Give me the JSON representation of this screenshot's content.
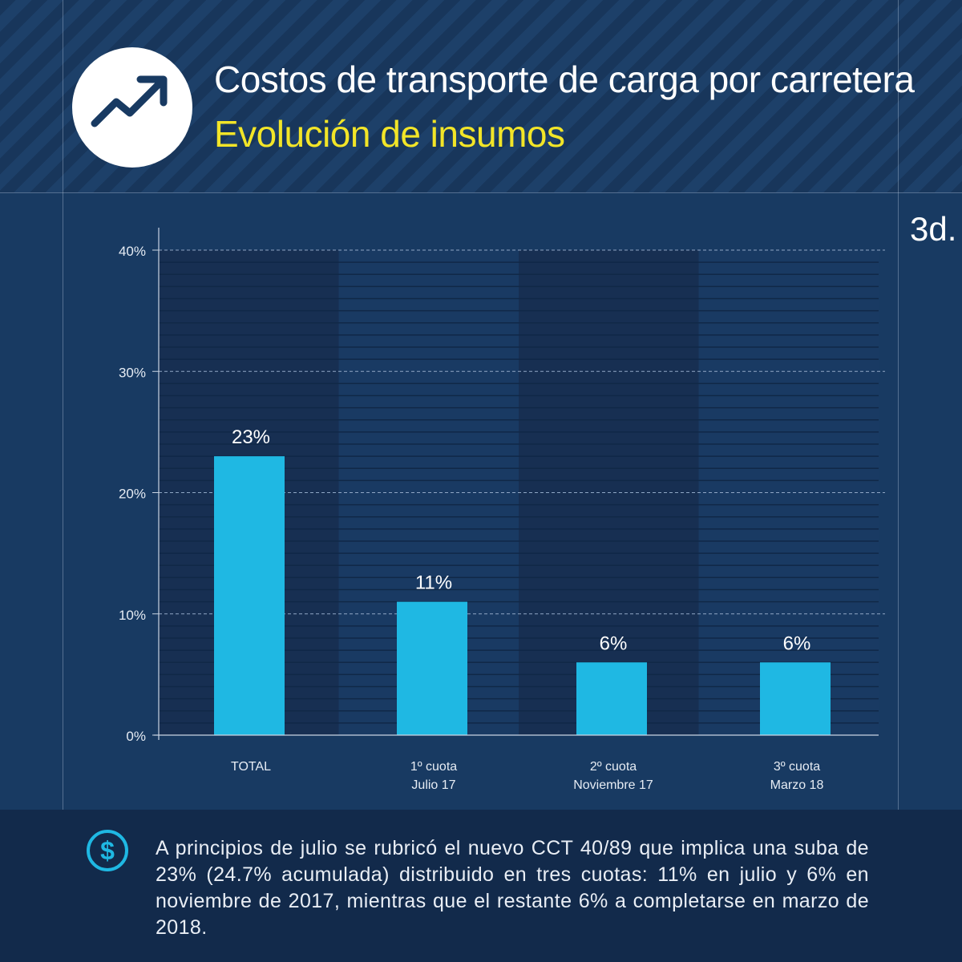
{
  "header": {
    "title": "Costos de transporte de carga por carretera",
    "subtitle": "Evolución de insumos",
    "logo_icon": "trending-up-icon",
    "badge": "3d."
  },
  "colors": {
    "background": "#183a62",
    "bar": "#1fb8e3",
    "subtitle": "#f2e528",
    "footer_bg": "#122a4b"
  },
  "chart_data": {
    "type": "bar",
    "categories": [
      [
        "TOTAL"
      ],
      [
        "1º cuota",
        "Julio 17"
      ],
      [
        "2º cuota",
        "Noviembre 17"
      ],
      [
        "3º cuota",
        "Marzo 18"
      ]
    ],
    "values": [
      23,
      11,
      6,
      6
    ],
    "data_labels": [
      "23%",
      "11%",
      "6%",
      "6%"
    ],
    "yticks": [
      "0%",
      "10%",
      "20%",
      "30%",
      "40%"
    ],
    "ylim": [
      0,
      40
    ],
    "title": "",
    "xlabel": "",
    "ylabel": "",
    "grid": true
  },
  "footer": {
    "icon": "dollar-icon",
    "text": "A principios de julio se rubricó el nuevo CCT 40/89 que implica una suba de 23% (24.7% acumulada) distribuido en tres cuotas: 11% en julio y 6% en noviembre de 2017, mientras que el restante 6% a completarse en marzo de 2018."
  }
}
